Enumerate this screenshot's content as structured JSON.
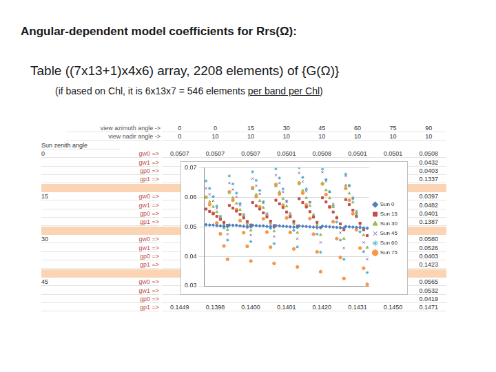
{
  "slide": {
    "title": "Angular-dependent model coefficients for Rrs(Ω):",
    "subtitle": "Table ((7x13+1)x4x6) array, 2208 elements) of {G(Ω)}",
    "note": {
      "before": "(if based on Chl, it is 6x13x7 = 546 elements ",
      "underlined": "per band per Chl",
      "after": ")"
    },
    "table": {
      "header_rows": [
        {
          "label": "view azimuth angle ->",
          "values": [
            0,
            0,
            15,
            30,
            45,
            60,
            75,
            90
          ]
        },
        {
          "label": "view nadir angle ->",
          "values": [
            0,
            10,
            10,
            10,
            10,
            10,
            10,
            10
          ]
        }
      ],
      "row_header": "Sun zenith angle",
      "groups": [
        {
          "sun": 0,
          "rows": [
            {
              "label": "gw0 =>",
              "values": [
                "0.0507",
                "0.0507",
                "0.0507",
                "0.0501",
                "0.0508",
                "0.0501",
                "0.0501",
                "0.0508"
              ]
            },
            {
              "label": "gw1 =>",
              "values": [
                null,
                null,
                null,
                null,
                null,
                null,
                null,
                "0.0432"
              ]
            },
            {
              "label": "gp0 =>",
              "values": [
                null,
                null,
                null,
                null,
                null,
                null,
                null,
                "0.0403"
              ]
            },
            {
              "label": "gp1 =>",
              "values": [
                null,
                null,
                null,
                null,
                null,
                null,
                null,
                "0.1337"
              ]
            }
          ]
        },
        {
          "sun": 15,
          "rows": [
            {
              "label": "gw0 =>",
              "values": [
                null,
                null,
                null,
                null,
                null,
                null,
                null,
                "0.0397"
              ]
            },
            {
              "label": "gw1 =>",
              "values": [
                null,
                null,
                null,
                null,
                null,
                null,
                null,
                "0.0482"
              ]
            },
            {
              "label": "gp0 =>",
              "values": [
                null,
                null,
                null,
                null,
                null,
                null,
                null,
                "0.0401"
              ]
            },
            {
              "label": "gp1 =>",
              "values": [
                null,
                null,
                null,
                null,
                null,
                null,
                null,
                "0.1387"
              ]
            }
          ]
        },
        {
          "sun": 30,
          "rows": [
            {
              "label": "gw0 =>",
              "values": [
                null,
                null,
                null,
                null,
                null,
                null,
                null,
                "0.0580"
              ]
            },
            {
              "label": "gw1 =>",
              "values": [
                null,
                null,
                null,
                null,
                null,
                null,
                null,
                "0.0526"
              ]
            },
            {
              "label": "gp0 =>",
              "values": [
                null,
                null,
                null,
                null,
                null,
                null,
                null,
                "0.0403"
              ]
            },
            {
              "label": "gp1 =>",
              "values": [
                null,
                null,
                null,
                null,
                null,
                null,
                null,
                "0.1423"
              ]
            }
          ]
        },
        {
          "sun": 45,
          "rows": [
            {
              "label": "gw0 =>",
              "values": [
                null,
                null,
                null,
                null,
                null,
                null,
                null,
                "0.0565"
              ]
            },
            {
              "label": "gw1 =>",
              "values": [
                null,
                null,
                null,
                null,
                null,
                null,
                null,
                "0.0532"
              ]
            },
            {
              "label": "gp0 =>",
              "values": [
                null,
                null,
                null,
                null,
                null,
                null,
                null,
                "0.0419"
              ]
            },
            {
              "label": "gp1 =>",
              "values": [
                "0.1449",
                "0.1398",
                "0.1400",
                "0.1401",
                "0.1420",
                "0.1431",
                "0.1450",
                "0.1471"
              ]
            }
          ]
        }
      ]
    }
  },
  "chart_data": {
    "type": "scatter",
    "x": [
      1,
      3,
      5,
      7,
      9,
      11,
      13,
      14,
      16,
      18,
      20,
      22,
      24,
      26,
      27,
      29,
      31,
      33,
      35,
      37,
      39,
      40,
      42,
      44,
      46,
      48,
      50,
      52,
      53,
      55,
      57,
      59,
      61,
      63,
      65,
      66,
      68,
      70,
      72,
      74,
      76,
      78,
      79,
      81,
      83,
      85,
      87,
      89,
      91
    ],
    "series": [
      {
        "name": "Sun 0",
        "color": "#4f81bd",
        "marker": "diamond",
        "values": [
          0.0507,
          0.0506,
          0.0506,
          0.0504,
          0.0503,
          0.0502,
          0.0501,
          0.0506,
          0.0505,
          0.0505,
          0.0503,
          0.0502,
          0.0501,
          0.05,
          0.0505,
          0.0504,
          0.0503,
          0.0503,
          0.0501,
          0.05,
          0.0499,
          0.0504,
          0.0503,
          0.0502,
          0.0501,
          0.05,
          0.0499,
          0.0498,
          0.0503,
          0.0502,
          0.0501,
          0.05,
          0.0499,
          0.0498,
          0.0497,
          0.0502,
          0.0501,
          0.05,
          0.0499,
          0.0498,
          0.0497,
          0.0496,
          0.0501,
          0.05,
          0.0499,
          0.0498,
          0.0497,
          0.0496,
          0.0495
        ]
      },
      {
        "name": "Sun 15",
        "color": "#c0504d",
        "marker": "square",
        "values": [
          0.056,
          0.0552,
          0.0544,
          0.0535,
          0.0525,
          0.0515,
          0.0505,
          0.0572,
          0.0563,
          0.0553,
          0.0542,
          0.053,
          0.0518,
          0.0506,
          0.0582,
          0.0571,
          0.056,
          0.0547,
          0.0533,
          0.0519,
          0.0504,
          0.059,
          0.0578,
          0.0565,
          0.055,
          0.0534,
          0.0518,
          0.0502,
          0.0595,
          0.0582,
          0.0567,
          0.0551,
          0.0533,
          0.0515,
          0.0498,
          0.0598,
          0.0584,
          0.0568,
          0.055,
          0.053,
          0.051,
          0.049,
          0.0592,
          0.0575,
          0.0556,
          0.0535,
          0.0512,
          0.049,
          0.047
        ]
      },
      {
        "name": "Sun 30",
        "color": "#9bbb59",
        "marker": "triangle",
        "values": [
          0.06,
          0.0585,
          0.0568,
          0.055,
          0.053,
          0.051,
          0.049,
          0.0615,
          0.0598,
          0.0579,
          0.0558,
          0.0536,
          0.0512,
          0.0488,
          0.0628,
          0.0609,
          0.0588,
          0.0565,
          0.054,
          0.0513,
          0.0485,
          0.0638,
          0.0618,
          0.0595,
          0.057,
          0.0542,
          0.0512,
          0.048,
          0.0645,
          0.0623,
          0.0598,
          0.0571,
          0.054,
          0.0507,
          0.0473,
          0.0648,
          0.0624,
          0.0597,
          0.0567,
          0.0533,
          0.0497,
          0.046,
          0.064,
          0.0613,
          0.0583,
          0.055,
          0.0512,
          0.0472,
          0.043
        ]
      },
      {
        "name": "Sun 45",
        "color": "#8064a2",
        "marker": "x",
        "values": [
          0.063,
          0.061,
          0.0588,
          0.0563,
          0.0535,
          0.0505,
          0.0475,
          0.0648,
          0.0626,
          0.0601,
          0.0573,
          0.0542,
          0.0508,
          0.0472,
          0.0663,
          0.0639,
          0.0611,
          0.058,
          0.0545,
          0.0507,
          0.0467,
          0.0675,
          0.0648,
          0.0618,
          0.0584,
          0.0546,
          0.0504,
          0.046,
          0.0682,
          0.0653,
          0.062,
          0.0583,
          0.0541,
          0.0495,
          0.0447,
          0.0685,
          0.0654,
          0.0618,
          0.0577,
          0.0531,
          0.048,
          0.0428,
          0.0672,
          0.0638,
          0.0599,
          0.0554,
          0.0503,
          0.0447,
          0.039
        ]
      },
      {
        "name": "Sun 60",
        "color": "#4bacc6",
        "marker": "star",
        "values": [
          0.0655,
          0.063,
          0.0602,
          0.057,
          0.0535,
          0.0496,
          0.0455,
          0.0672,
          0.0645,
          0.0614,
          0.0579,
          0.054,
          0.0497,
          0.045,
          0.0686,
          0.0657,
          0.0623,
          0.0585,
          0.0542,
          0.0495,
          0.0443,
          0.0696,
          0.0665,
          0.0628,
          0.0587,
          0.054,
          0.0488,
          0.0432,
          0.07,
          0.0667,
          0.0628,
          0.0583,
          0.0532,
          0.0475,
          0.0414,
          0.0695,
          0.066,
          0.0619,
          0.0571,
          0.0516,
          0.0455,
          0.039,
          0.0678,
          0.064,
          0.0595,
          0.0543,
          0.0483,
          0.0416,
          0.0345
        ]
      },
      {
        "name": "Sun 75",
        "color": "#f79646",
        "marker": "circle",
        "values": [
          0.06,
          0.0575,
          0.0546,
          0.0513,
          0.0476,
          0.0435,
          0.039,
          0.0618,
          0.059,
          0.0558,
          0.0521,
          0.048,
          0.0434,
          0.0384,
          0.0632,
          0.0602,
          0.0567,
          0.0527,
          0.0482,
          0.0431,
          0.0376,
          0.0643,
          0.0611,
          0.0573,
          0.053,
          0.0481,
          0.0425,
          0.0364,
          0.0648,
          0.0614,
          0.0574,
          0.0528,
          0.0475,
          0.0415,
          0.0348,
          0.0645,
          0.0609,
          0.0566,
          0.0517,
          0.046,
          0.0396,
          0.0325,
          0.063,
          0.059,
          0.0544,
          0.049,
          0.0428,
          0.036,
          0.0305
        ]
      }
    ],
    "xlim": [
      0,
      92
    ],
    "ylim": [
      0.03,
      0.07
    ],
    "yticks": [
      0.03,
      0.04,
      0.05,
      0.06,
      0.07
    ],
    "grid": true,
    "legend": "right",
    "tick_labels": "y"
  }
}
